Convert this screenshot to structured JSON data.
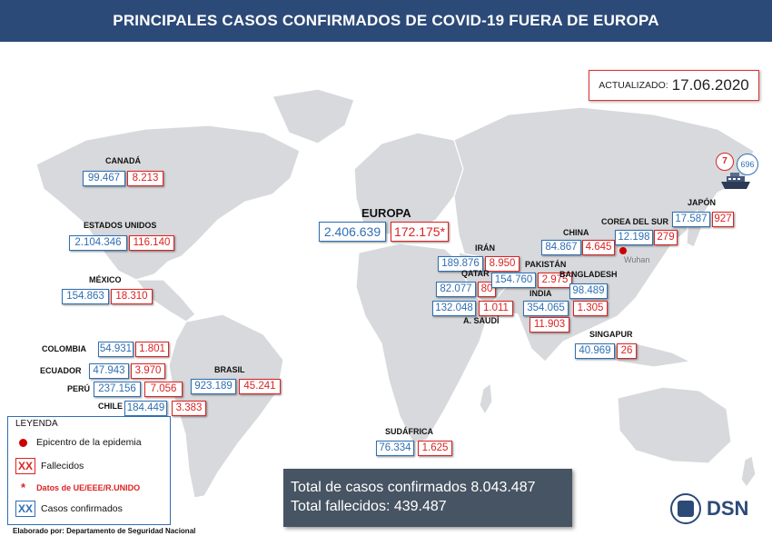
{
  "header": {
    "title": "PRINCIPALES CASOS CONFIRMADOS DE COVID-19 FUERA DE EUROPA"
  },
  "updated": {
    "label": "ACTUALIZADO:",
    "date": "17.06.2020"
  },
  "europe": {
    "name": "EUROPA",
    "confirmed": "2.406.639",
    "deaths": "172.175*"
  },
  "countries": {
    "canada": {
      "name": "CANADÁ",
      "confirmed": "99.467",
      "deaths": "8.213"
    },
    "usa": {
      "name": "ESTADOS UNIDOS",
      "confirmed": "2.104.346",
      "deaths": "116.140"
    },
    "mexico": {
      "name": "MÉXICO",
      "confirmed": "154.863",
      "deaths": "18.310"
    },
    "colombia": {
      "name": "COLOMBIA",
      "confirmed": "54.931",
      "deaths": "1.801"
    },
    "ecuador": {
      "name": "ECUADOR",
      "confirmed": "47.943",
      "deaths": "3.970"
    },
    "peru": {
      "name": "PERÚ",
      "confirmed": "237.156",
      "deaths": "7.056"
    },
    "chile": {
      "name": "CHILE",
      "confirmed": "184.449",
      "deaths": "3.383"
    },
    "brasil": {
      "name": "BRASIL",
      "confirmed": "923.189",
      "deaths": "45.241"
    },
    "sudafrica": {
      "name": "SUDÁFRICA",
      "confirmed": "76.334",
      "deaths": "1.625"
    },
    "iran": {
      "name": "IRÁN",
      "confirmed": "189.876",
      "deaths": "8.950"
    },
    "qatar": {
      "name": "QATAR",
      "confirmed": "82.077",
      "deaths": "80"
    },
    "saudi": {
      "name": "A. SAUDÍ",
      "confirmed": "132.048",
      "deaths": "1.011"
    },
    "pakistan": {
      "name": "PAKISTÁN",
      "confirmed": "154.760",
      "deaths": "2.975"
    },
    "india": {
      "name": "INDIA",
      "confirmed": "354.065",
      "deaths": "11.903"
    },
    "bangladesh": {
      "name": "BANGLADESH",
      "confirmed": "98.489",
      "deaths": "1.305"
    },
    "china": {
      "name": "CHINA",
      "confirmed": "84.867",
      "deaths": "4.645"
    },
    "korea": {
      "name": "COREA DEL SUR",
      "confirmed": "12.198",
      "deaths": "279"
    },
    "japan": {
      "name": "JAPÓN",
      "confirmed": "17.587",
      "deaths": "927"
    },
    "singapore": {
      "name": "SINGAPUR",
      "confirmed": "40.969",
      "deaths": "26"
    }
  },
  "wuhan": {
    "label": "Wuhan"
  },
  "ship": {
    "deaths": "7",
    "confirmed": "696"
  },
  "legend": {
    "title": "LEYENDA",
    "epicenter": "Epicentro de la epidemia",
    "deaths_marker": "XX",
    "deaths": "Fallecidos",
    "eu_marker": "*",
    "eu_data": "Datos de UE/EEE/R.UNIDO",
    "confirmed_marker": "XX",
    "confirmed": "Casos confirmados"
  },
  "credit": "Elaborado por: Departamento de Seguridad Nacional",
  "totals": {
    "confirmed": "Total de casos confirmados 8.043.487",
    "deaths": "Total fallecidos: 439.487"
  },
  "logo": {
    "text": "DSN"
  }
}
